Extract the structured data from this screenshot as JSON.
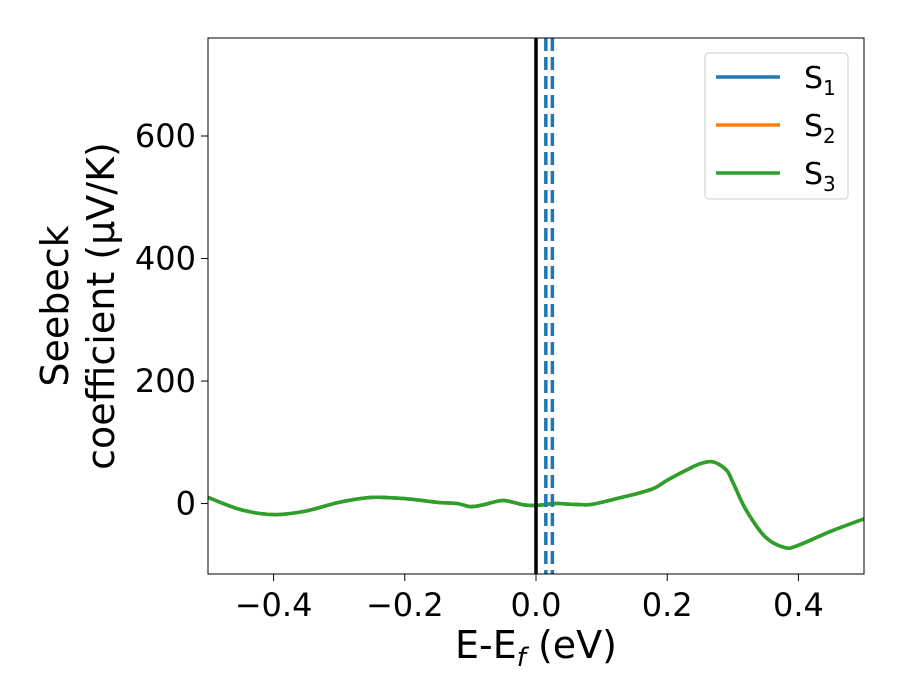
{
  "chart_data": {
    "type": "line",
    "xlabel": "E-E",
    "xlabel_sub": "f",
    "xlabel_unit": " (eV)",
    "ylabel_line1": "Seebeck",
    "ylabel_line2": "coefficient  (μV/K)",
    "xlim": [
      -0.5,
      0.5
    ],
    "ylim": [
      -115,
      760
    ],
    "xticks": [
      -0.4,
      -0.2,
      0.0,
      0.2,
      0.4
    ],
    "xtick_labels": [
      "−0.4",
      "−0.2",
      "0.0",
      "0.2",
      "0.4"
    ],
    "yticks": [
      0,
      200,
      400,
      600
    ],
    "ytick_labels": [
      "0",
      "200",
      "400",
      "600"
    ],
    "grid": false,
    "legend_position": "top-right",
    "reference_lines": [
      {
        "x": 0.0,
        "style": "solid",
        "color": "#000000"
      },
      {
        "x": 0.015,
        "style": "dashed",
        "color": "#1f77b4"
      },
      {
        "x": 0.025,
        "style": "dashed",
        "color": "#1f77b4"
      }
    ],
    "x": [
      -0.5,
      -0.45,
      -0.4,
      -0.35,
      -0.3,
      -0.25,
      -0.2,
      -0.15,
      -0.12,
      -0.1,
      -0.08,
      -0.05,
      -0.02,
      0.0,
      0.03,
      0.05,
      0.08,
      0.1,
      0.13,
      0.15,
      0.18,
      0.2,
      0.23,
      0.25,
      0.27,
      0.29,
      0.3,
      0.32,
      0.35,
      0.38,
      0.4,
      0.45,
      0.5
    ],
    "series": [
      {
        "name": "S",
        "sub": "1",
        "color": "#1f77b4",
        "values": [
          10,
          -10,
          -18,
          -12,
          2,
          10,
          8,
          2,
          0,
          -5,
          -2,
          5,
          -2,
          -3,
          0,
          -1,
          -2,
          2,
          10,
          15,
          25,
          38,
          55,
          65,
          68,
          55,
          35,
          -10,
          -55,
          -72,
          -68,
          -45,
          -25
        ]
      },
      {
        "name": "S",
        "sub": "2",
        "color": "#ff7f0e",
        "values": [
          10,
          -10,
          -18,
          -12,
          2,
          10,
          8,
          2,
          0,
          -5,
          -2,
          5,
          -2,
          -3,
          0,
          -1,
          -2,
          2,
          10,
          15,
          25,
          38,
          55,
          65,
          68,
          55,
          35,
          -10,
          -55,
          -72,
          -68,
          -45,
          -25
        ]
      },
      {
        "name": "S",
        "sub": "3",
        "color": "#2ca02c",
        "values": [
          10,
          -10,
          -18,
          -12,
          2,
          10,
          8,
          2,
          0,
          -5,
          -2,
          5,
          -2,
          -3,
          0,
          -1,
          -2,
          2,
          10,
          15,
          25,
          38,
          55,
          65,
          68,
          55,
          35,
          -10,
          -55,
          -72,
          -68,
          -45,
          -25
        ]
      }
    ]
  }
}
